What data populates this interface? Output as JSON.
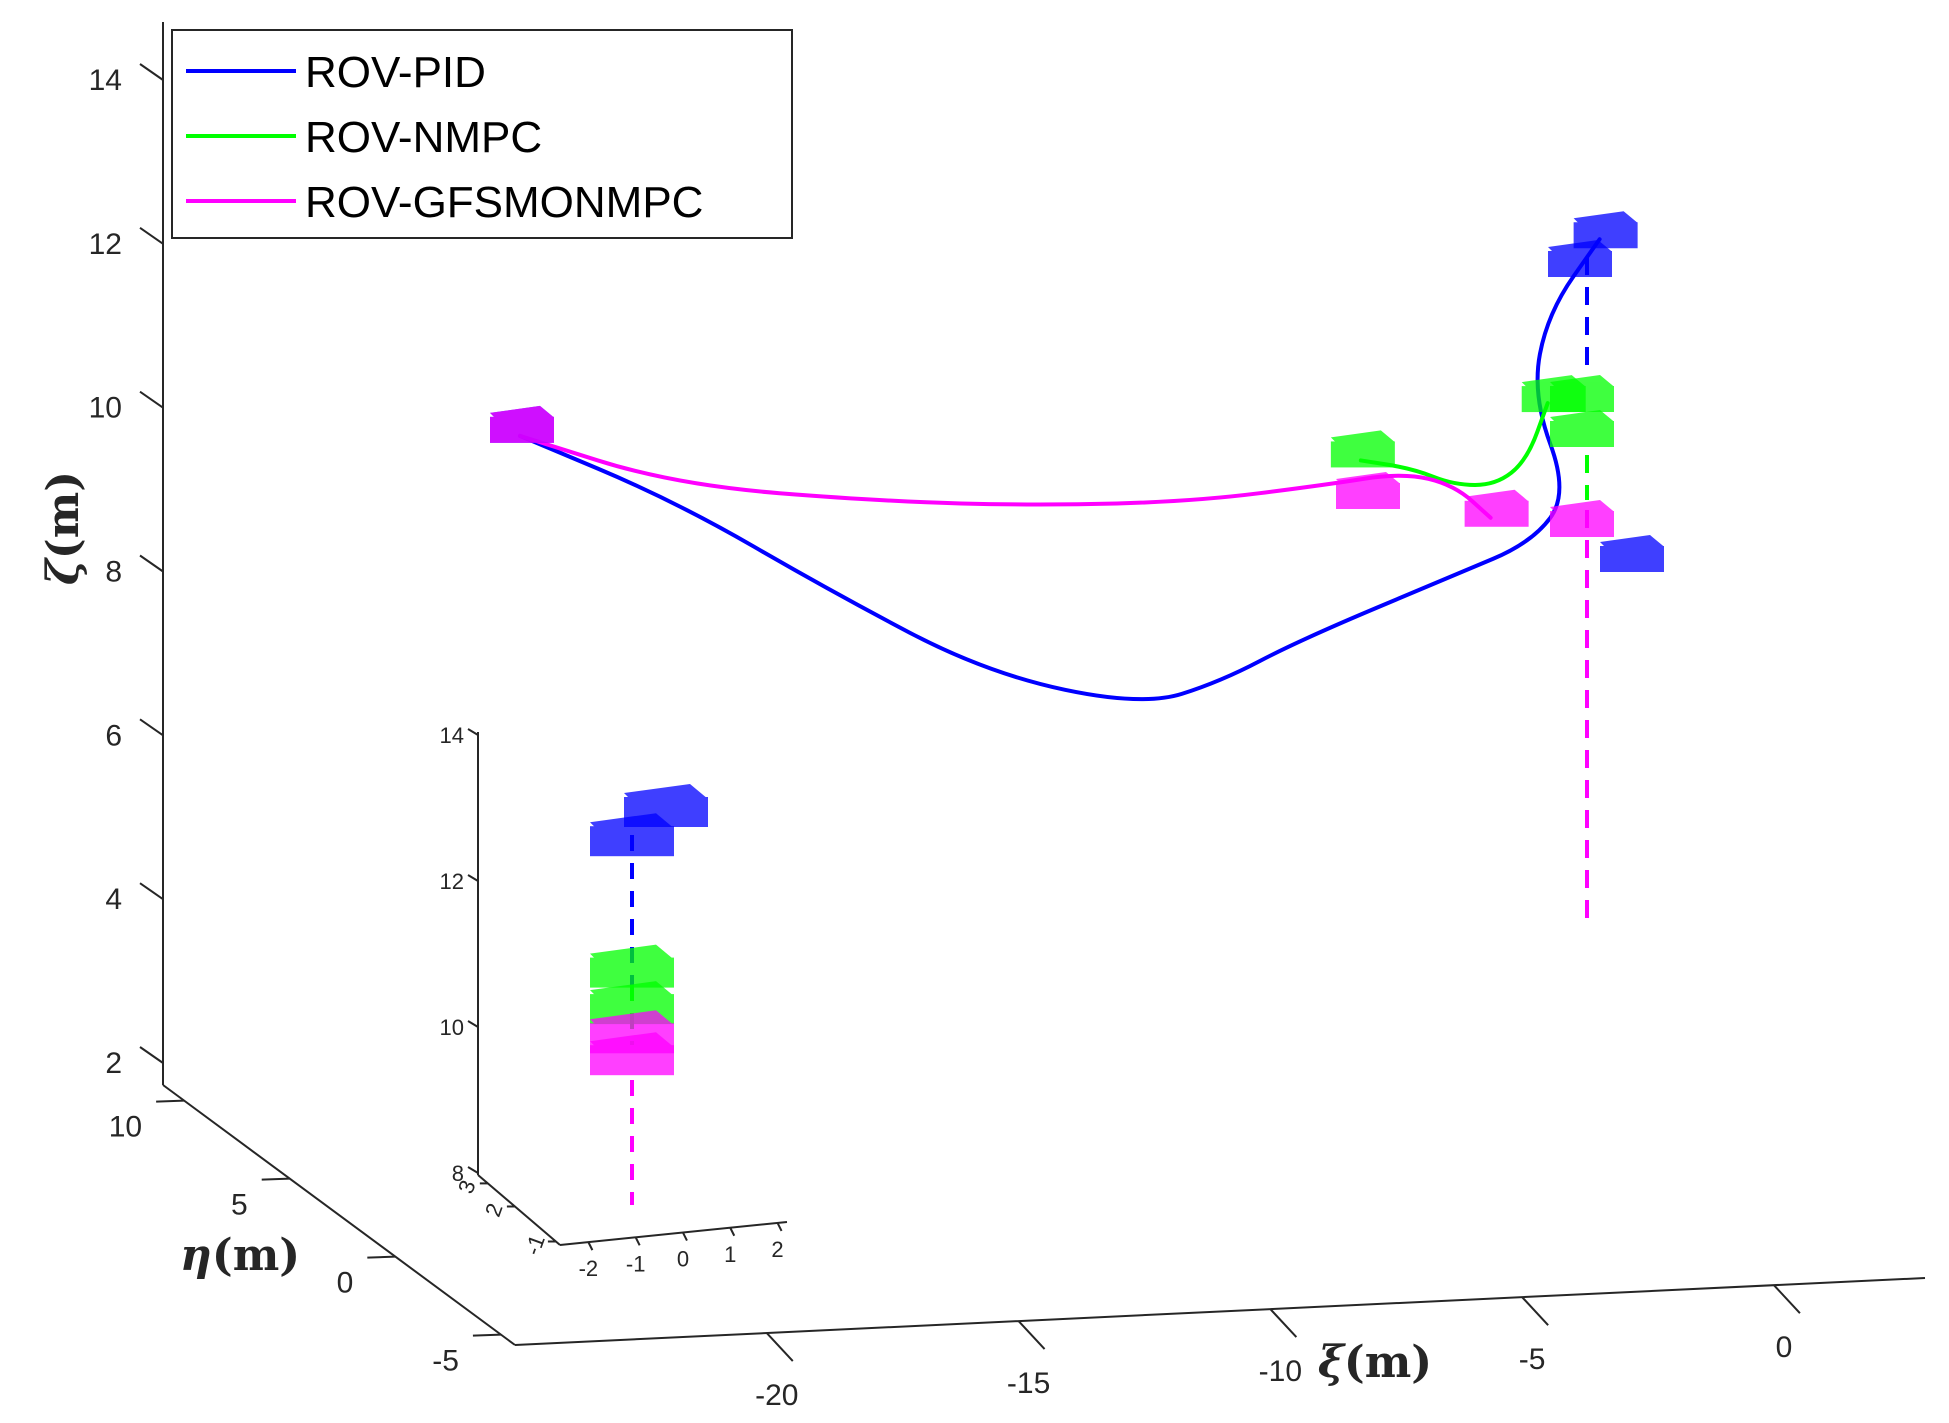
{
  "chart_data": {
    "type": "line3d",
    "title": "",
    "axes": {
      "x": {
        "label_symbol": "ξ",
        "label_unit": "(m)",
        "ticks": [
          -20,
          -15,
          -10,
          -5,
          0
        ]
      },
      "y": {
        "label_symbol": "η",
        "label_unit": "(m)",
        "ticks": [
          -5,
          0,
          5,
          10
        ]
      },
      "z": {
        "label_symbol": "ζ",
        "label_unit": "(m)",
        "ticks": [
          2,
          4,
          6,
          8,
          10,
          12,
          14
        ],
        "range": [
          2,
          14.5
        ]
      }
    },
    "legend": {
      "placement": "top-left",
      "entries": [
        {
          "name": "ROV-PID",
          "color": "#0000ff"
        },
        {
          "name": "ROV-NMPC",
          "color": "#00ff00"
        },
        {
          "name": "ROV-GFSMONMPC",
          "color": "#ff00ff"
        }
      ]
    },
    "series": [
      {
        "name": "ROV-PID",
        "color": "#0000ff",
        "points_xz": [
          [
            -25,
            9.9
          ],
          [
            -22,
            9.1
          ],
          [
            -19,
            8.0
          ],
          [
            -16,
            7.0
          ],
          [
            -13,
            6.6
          ],
          [
            -11.5,
            6.9
          ],
          [
            -10,
            7.4
          ],
          [
            -7,
            8.2
          ],
          [
            -5.5,
            8.6
          ],
          [
            -4.8,
            9.2
          ],
          [
            -5.5,
            10.4
          ],
          [
            -5.2,
            11.4
          ],
          [
            -4.2,
            12.3
          ]
        ],
        "start": [
          -25,
          9.9
        ],
        "end": [
          -4.2,
          12.3
        ]
      },
      {
        "name": "ROV-NMPC",
        "color": "#00ff00",
        "points_xz": [
          [
            -8.8,
            9.6
          ],
          [
            -7.8,
            9.5
          ],
          [
            -7.0,
            9.3
          ],
          [
            -6.2,
            9.3
          ],
          [
            -5.6,
            9.6
          ],
          [
            -5.2,
            10.3
          ]
        ],
        "start": [
          -8.8,
          9.6
        ],
        "end": [
          -5.2,
          10.3
        ]
      },
      {
        "name": "ROV-GFSMONMPC",
        "color": "#ff00ff",
        "points_xz": [
          [
            -25,
            9.9
          ],
          [
            -22,
            9.3
          ],
          [
            -18,
            9.1
          ],
          [
            -15,
            9.05
          ],
          [
            -12,
            9.1
          ],
          [
            -9.5,
            9.3
          ],
          [
            -8,
            9.45
          ],
          [
            -7,
            9.3
          ],
          [
            -6.3,
            8.9
          ]
        ],
        "start": [
          -25,
          9.9
        ],
        "end": [
          -6.3,
          8.9
        ]
      }
    ],
    "inset": {
      "z_ticks": [
        8,
        10,
        12,
        14
      ],
      "x_ticks": [
        -2,
        -1,
        0,
        1,
        2
      ],
      "y_ticks": [
        -1,
        2,
        3
      ],
      "blocks": [
        {
          "series": "ROV-PID",
          "color": "#0000ff",
          "z": 13.0
        },
        {
          "series": "ROV-PID",
          "color": "#0000ff",
          "z": 12.6
        },
        {
          "series": "ROV-NMPC",
          "color": "#00ff00",
          "z": 10.8
        },
        {
          "series": "ROV-NMPC",
          "color": "#00ff00",
          "z": 10.3
        },
        {
          "series": "ROV-GFSMONMPC",
          "color": "#ff00ff",
          "z": 9.9
        },
        {
          "series": "ROV-GFSMONMPC",
          "color": "#ff00ff",
          "z": 9.6
        }
      ]
    }
  }
}
